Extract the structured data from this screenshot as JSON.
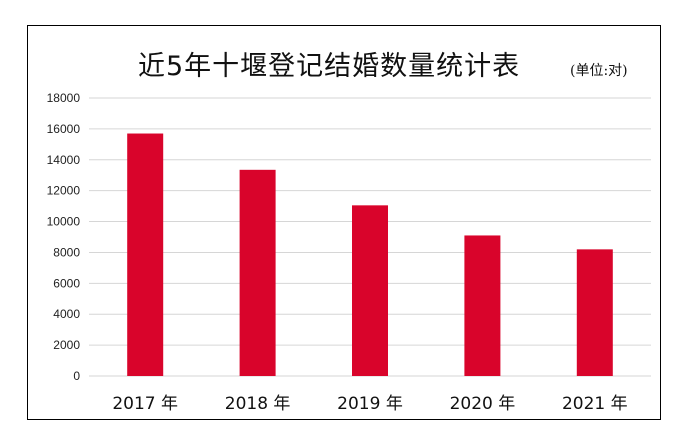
{
  "chart_data": {
    "type": "bar",
    "title": "近5年十堰登记结婚数量统计表",
    "unit": "(单位:对)",
    "categories": [
      "2017 年",
      "2018 年",
      "2019 年",
      "2020 年",
      "2021 年"
    ],
    "values": [
      15700,
      13350,
      11050,
      9100,
      8200
    ],
    "ylim": [
      0,
      18000
    ],
    "yticks": [
      0,
      2000,
      4000,
      6000,
      8000,
      10000,
      12000,
      14000,
      16000,
      18000
    ],
    "grid": true,
    "bar_color": "#D9042B"
  }
}
